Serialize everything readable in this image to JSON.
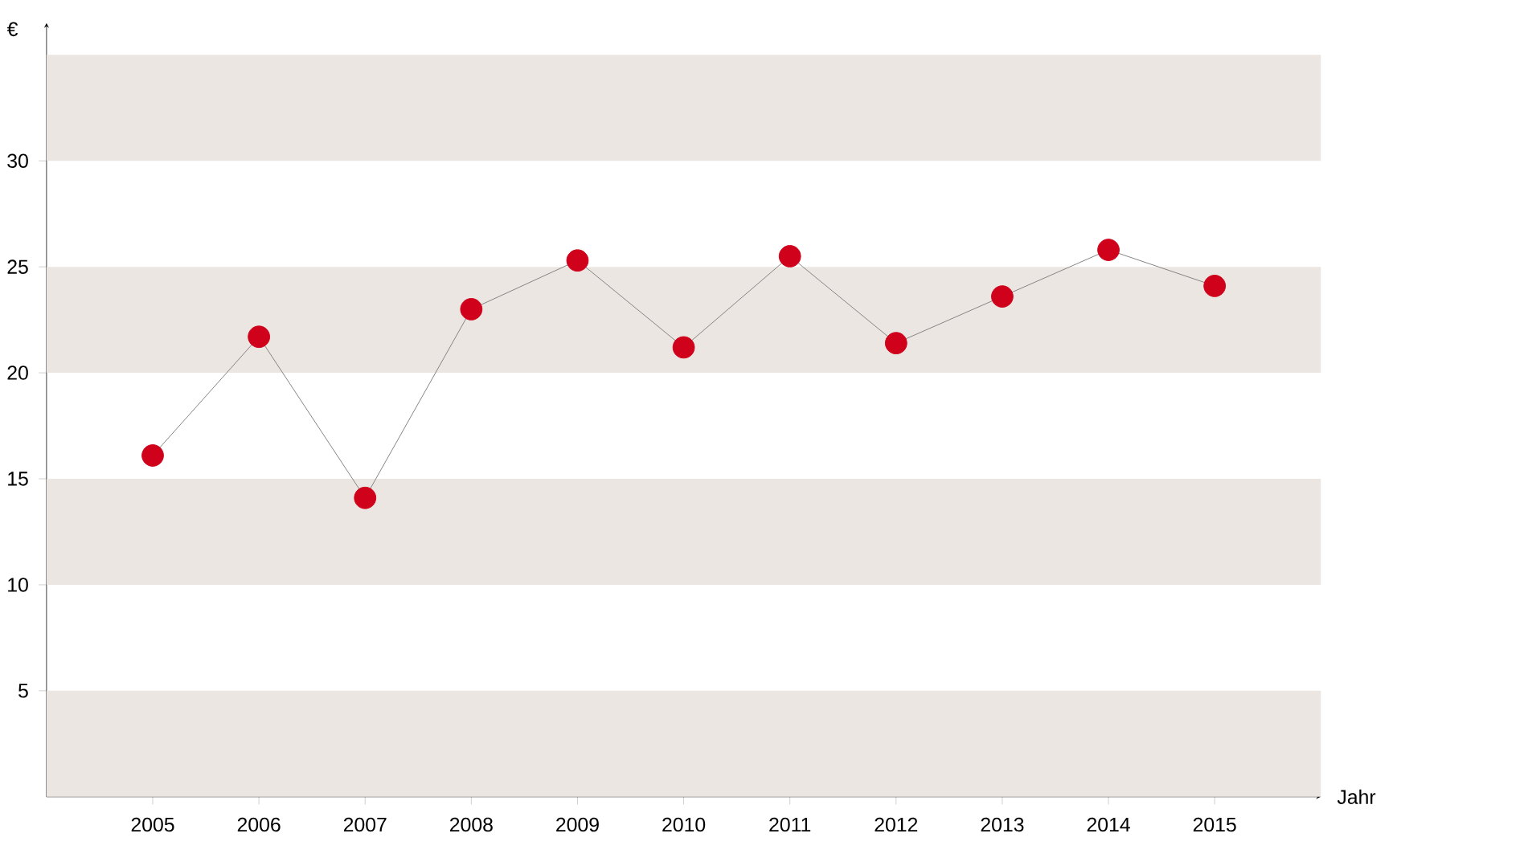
{
  "chart_data": {
    "type": "line",
    "xlabel": "Jahr",
    "ylabel": "€",
    "categories": [
      "2005",
      "2006",
      "2007",
      "2008",
      "2009",
      "2010",
      "2011",
      "2012",
      "2013",
      "2014",
      "2015"
    ],
    "series": [
      {
        "color": "#d0021b",
        "values": [
          16.1,
          21.7,
          14.1,
          23.0,
          25.3,
          21.2,
          25.5,
          21.4,
          23.6,
          25.8,
          24.1
        ]
      }
    ],
    "ylim": [
      0,
      36.5
    ],
    "yticks": [
      5,
      10,
      15,
      20,
      25,
      30
    ],
    "marker": "circle",
    "grid": false,
    "bands": [
      {
        "axis": "y",
        "from": 0,
        "to": 5,
        "color": "#ebe6e2"
      },
      {
        "axis": "y",
        "from": 10,
        "to": 15,
        "color": "#ebe6e2"
      },
      {
        "axis": "y",
        "from": 20,
        "to": 25,
        "color": "#ebe6e2"
      },
      {
        "axis": "y",
        "from": 30,
        "to": 35,
        "color": "#ebe6e2"
      }
    ]
  }
}
